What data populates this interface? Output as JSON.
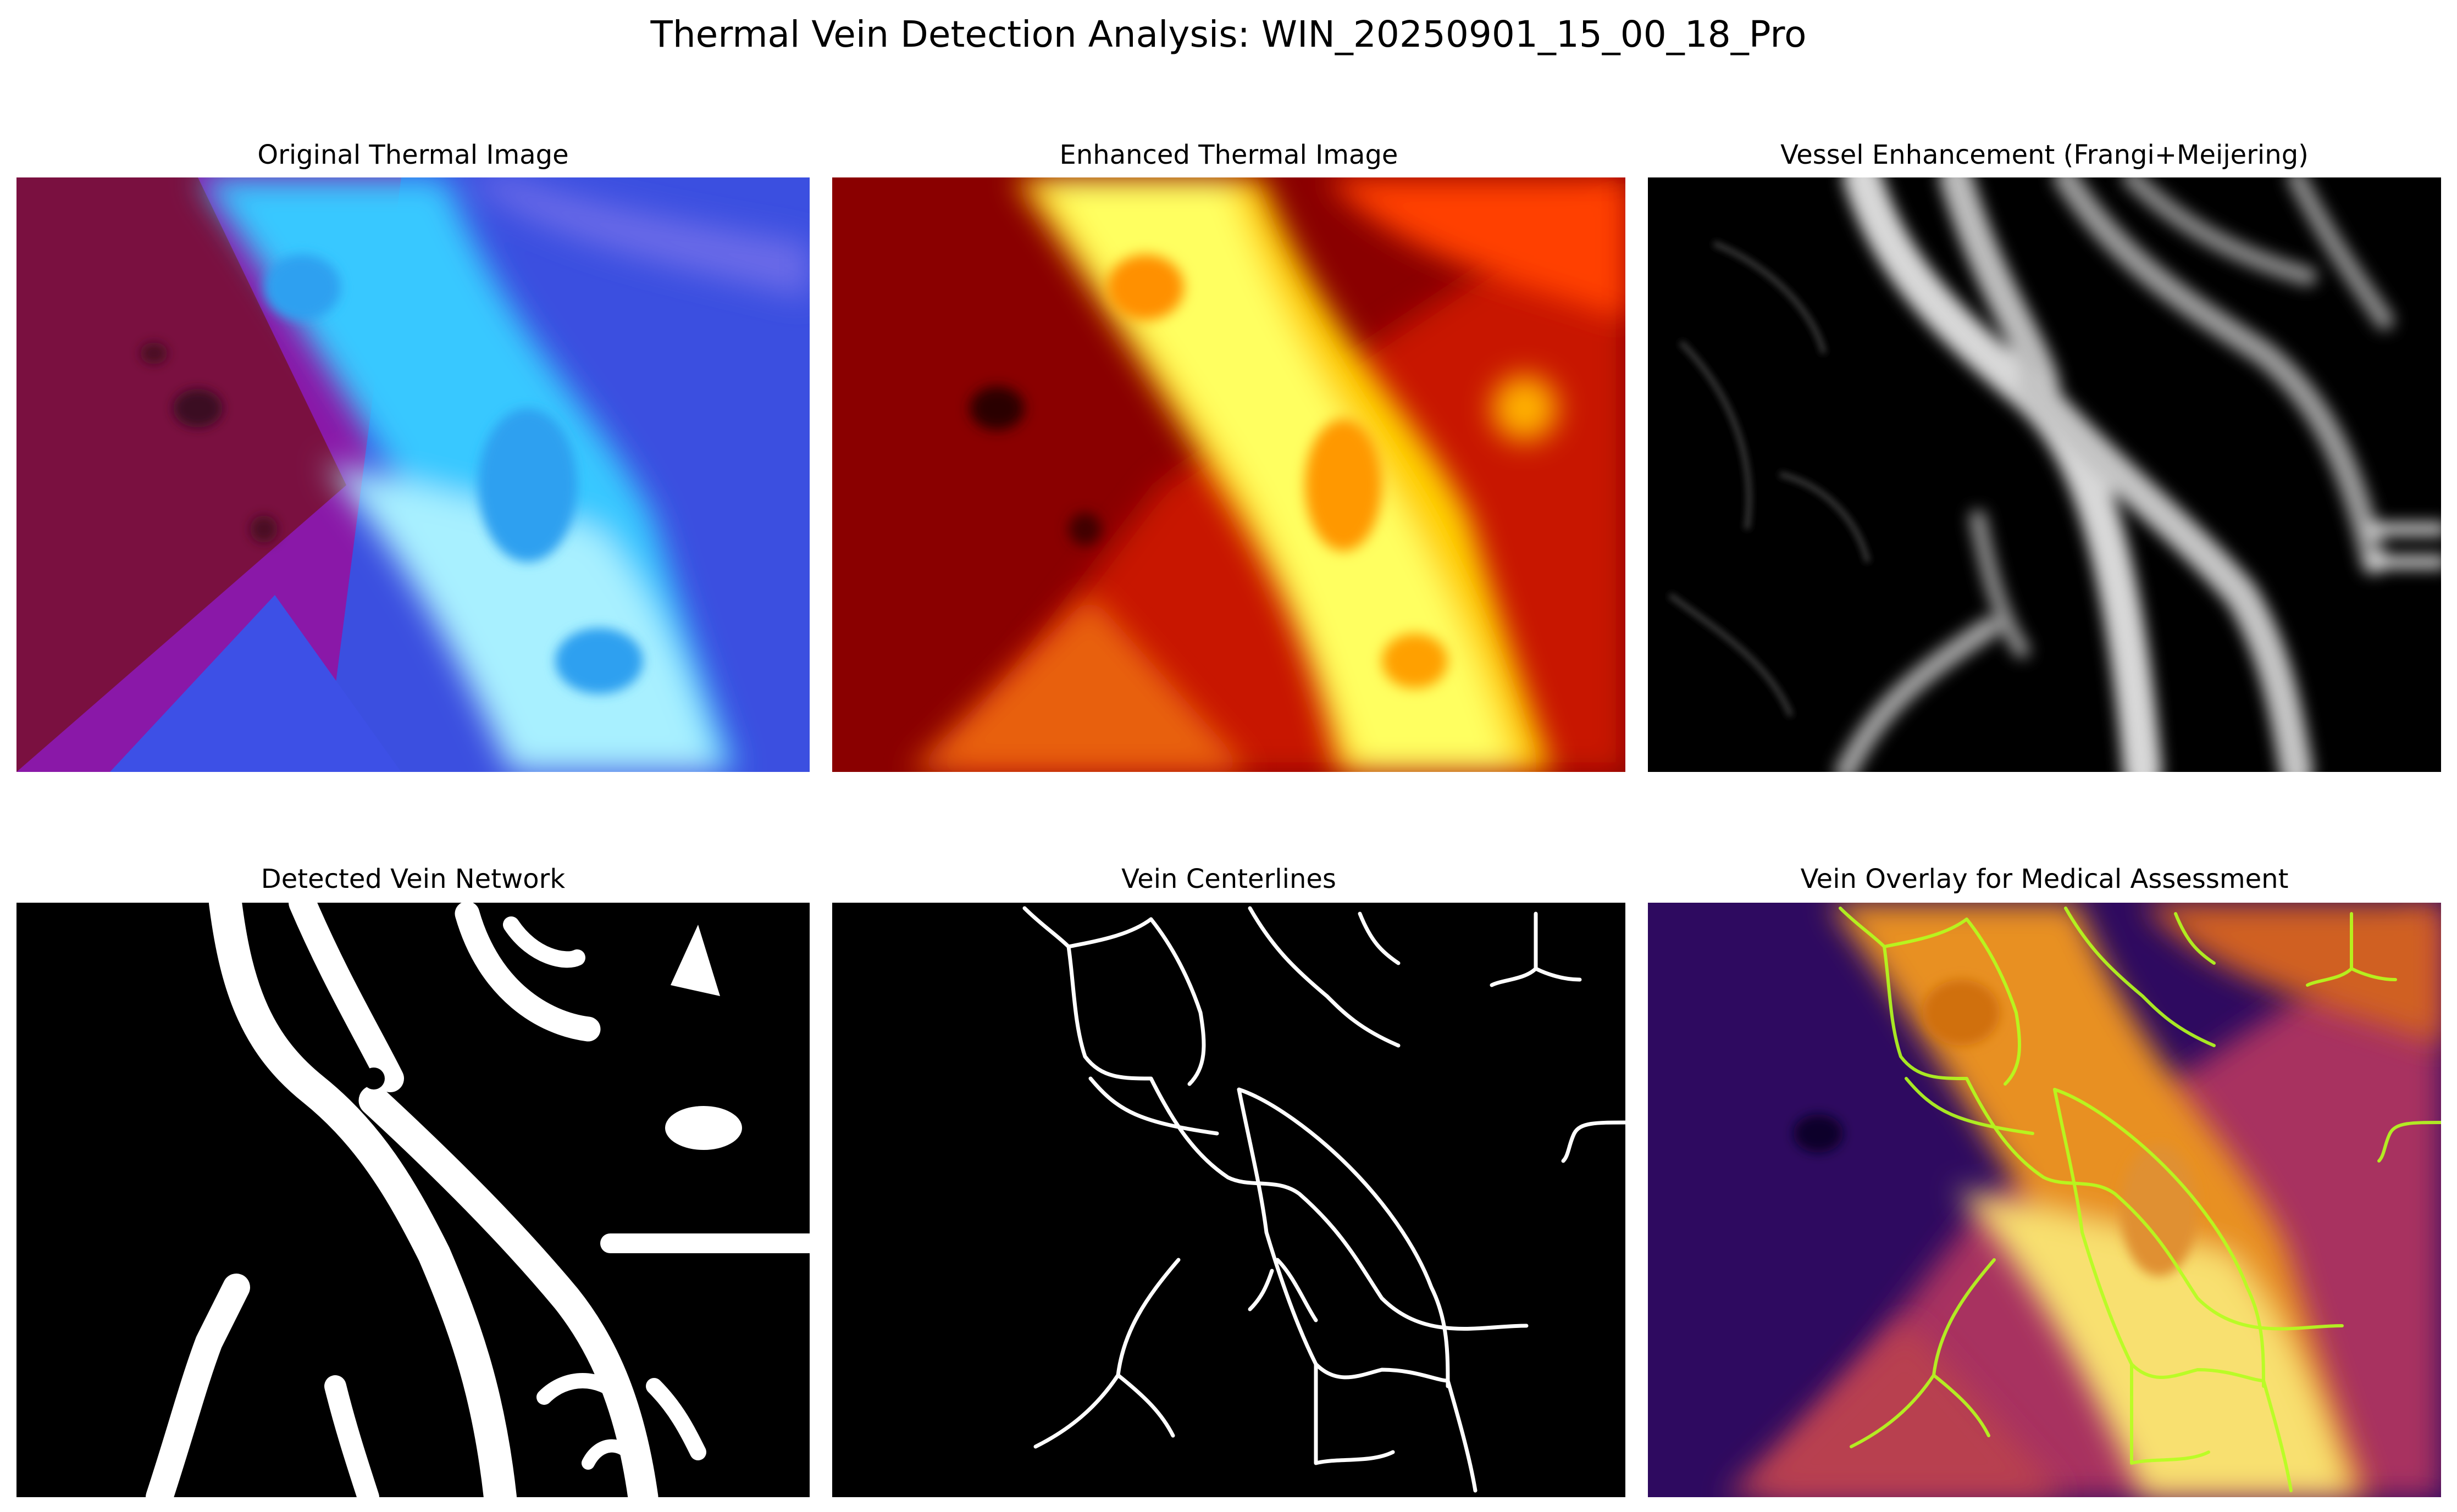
{
  "figure": {
    "title": "Thermal Vein Detection Analysis: WIN_20250901_15_00_18_Pro"
  },
  "panels": [
    {
      "title": "Original Thermal Image",
      "content": "thermal-photo-cool-colormap"
    },
    {
      "title": "Enhanced Thermal Image",
      "content": "thermal-photo-hot-colormap"
    },
    {
      "title": "Vessel Enhancement (Frangi+Meijering)",
      "content": "vesselness-grayscale"
    },
    {
      "title": "Detected Vein Network",
      "content": "binary-vein-mask"
    },
    {
      "title": "Vein Centerlines",
      "content": "skeleton-lines"
    },
    {
      "title": "Vein Overlay for Medical Assessment",
      "content": "inferno-photo-with-green-centerlines"
    }
  ],
  "colors": {
    "background": "#ffffff",
    "mask_fg": "#ffffff",
    "mask_bg": "#000000",
    "overlay_line": "#b4ff1e"
  }
}
